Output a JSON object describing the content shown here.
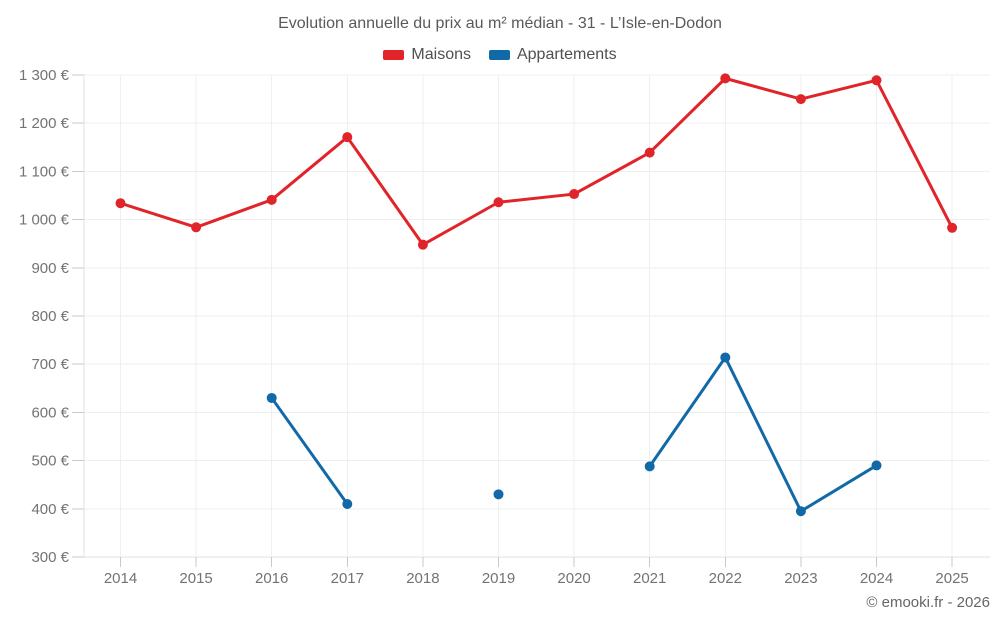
{
  "chart_data": {
    "type": "line",
    "title": "Evolution annuelle du prix au m² médian - 31 - L’Isle-en-Dodon",
    "categories": [
      "2014",
      "2015",
      "2016",
      "2017",
      "2018",
      "2019",
      "2020",
      "2021",
      "2022",
      "2023",
      "2024",
      "2025"
    ],
    "series": [
      {
        "name": "Maisons",
        "color": "#e02429",
        "values": [
          1034,
          984,
          1041,
          1171,
          948,
          1036,
          1053,
          1139,
          1293,
          1250,
          1289,
          983
        ]
      },
      {
        "name": "Appartements",
        "color": "#1169a8",
        "values": [
          null,
          null,
          630,
          410,
          null,
          430,
          null,
          488,
          714,
          395,
          490,
          null
        ]
      }
    ],
    "xlabel": "",
    "ylabel": "",
    "ylim": [
      300,
      1300
    ],
    "ytick_step": 100,
    "ytick_labels": [
      "300 €",
      "400 €",
      "500 €",
      "600 €",
      "700 €",
      "800 €",
      "900 €",
      "1 000 €",
      "1 100 €",
      "1 200 €",
      "1 300 €"
    ],
    "grid": true,
    "legend_position": "top",
    "marker_radius": 5,
    "line_width": 3,
    "credit": "© emooki.fr - 2026",
    "colors": {
      "grid_line": "#efefef",
      "axis_border": "#e2e2e2",
      "tick_mark": "#c9c9c9",
      "tick_text": "#737373",
      "title_text": "#58595b"
    }
  }
}
